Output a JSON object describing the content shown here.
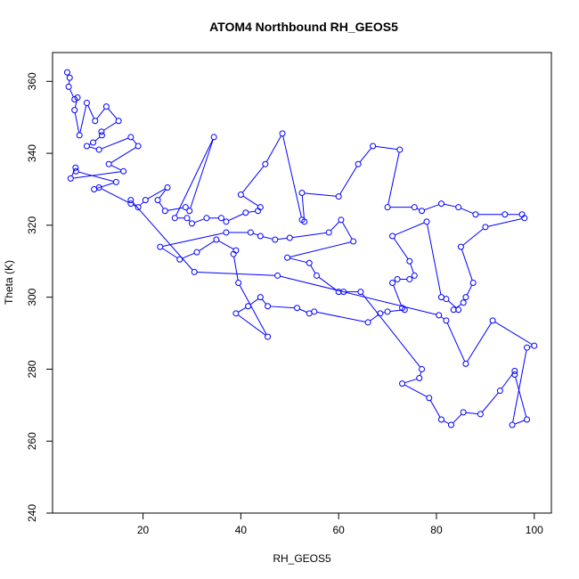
{
  "chart_data": {
    "type": "line",
    "title": "ATOM4 Northbound RH_GEOS5",
    "xlabel": "RH_GEOS5",
    "ylabel": "Theta (K)",
    "xlim": [
      1.5,
      103.5
    ],
    "ylim": [
      240,
      368
    ],
    "x_ticks": [
      20,
      40,
      60,
      80,
      100
    ],
    "y_ticks": [
      240,
      260,
      280,
      300,
      320,
      340,
      360
    ],
    "grid": false,
    "legend": "none",
    "series_color": "#0000ff",
    "marker": "open-circle",
    "points": [
      [
        4.5,
        362.5
      ],
      [
        5,
        361
      ],
      [
        4.8,
        358.5
      ],
      [
        6,
        355
      ],
      [
        6.6,
        355.5
      ],
      [
        6,
        352
      ],
      [
        7,
        345
      ],
      [
        8.5,
        354
      ],
      [
        10.2,
        349
      ],
      [
        12.5,
        353
      ],
      [
        15,
        349
      ],
      [
        11.5,
        346
      ],
      [
        11.6,
        345
      ],
      [
        9.8,
        343
      ],
      [
        8.5,
        342
      ],
      [
        11,
        341
      ],
      [
        17.5,
        344.5
      ],
      [
        19,
        342
      ],
      [
        13,
        337
      ],
      [
        16,
        335
      ],
      [
        5.2,
        333
      ],
      [
        6.2,
        336
      ],
      [
        6.3,
        335
      ],
      [
        14.5,
        332
      ],
      [
        10,
        330
      ],
      [
        11,
        330.5
      ],
      [
        17.5,
        326
      ],
      [
        19,
        325
      ],
      [
        20.5,
        327
      ],
      [
        25,
        330.5
      ],
      [
        23,
        327
      ],
      [
        24.5,
        324
      ],
      [
        28.7,
        325
      ],
      [
        29.5,
        324
      ],
      [
        34.5,
        344.5
      ],
      [
        26.5,
        322
      ],
      [
        29,
        322
      ],
      [
        30,
        320.5
      ],
      [
        33,
        322
      ],
      [
        36,
        322
      ],
      [
        37,
        321
      ],
      [
        41,
        323.5
      ],
      [
        43.5,
        324
      ],
      [
        44,
        325
      ],
      [
        40,
        328.5
      ],
      [
        45,
        337
      ],
      [
        48.5,
        345.5
      ],
      [
        52.5,
        321.5
      ],
      [
        53,
        321
      ],
      [
        52.5,
        329
      ],
      [
        60,
        328
      ],
      [
        64,
        337
      ],
      [
        67,
        342
      ],
      [
        72.5,
        341
      ],
      [
        70,
        325
      ],
      [
        75.5,
        325
      ],
      [
        77,
        324
      ],
      [
        81,
        326
      ],
      [
        84.5,
        325
      ],
      [
        88,
        323
      ],
      [
        94,
        323
      ],
      [
        97.5,
        323
      ],
      [
        98,
        322
      ],
      [
        90,
        319.5
      ],
      [
        85,
        314
      ],
      [
        87.5,
        304
      ],
      [
        86,
        300
      ],
      [
        85.5,
        298.5
      ],
      [
        83.5,
        296.5
      ],
      [
        84.5,
        296.5
      ],
      [
        82,
        299.5
      ],
      [
        81,
        300
      ],
      [
        78,
        321
      ],
      [
        71,
        317
      ],
      [
        74.5,
        310
      ],
      [
        75.5,
        306
      ],
      [
        74.5,
        305
      ],
      [
        72,
        305
      ],
      [
        71,
        304
      ],
      [
        73,
        297
      ],
      [
        73.5,
        296.5
      ],
      [
        70,
        296
      ],
      [
        68.5,
        295.5
      ],
      [
        66,
        293
      ],
      [
        55,
        296
      ],
      [
        54,
        295.5
      ],
      [
        51.5,
        297
      ],
      [
        45.5,
        297.5
      ],
      [
        44,
        300
      ],
      [
        41.5,
        297.5
      ],
      [
        39,
        295.5
      ],
      [
        45.5,
        289
      ],
      [
        39.5,
        304
      ],
      [
        38.5,
        312
      ],
      [
        39,
        313
      ],
      [
        35,
        316
      ],
      [
        31,
        312.5
      ],
      [
        27.5,
        310.5
      ],
      [
        23.5,
        314
      ],
      [
        37,
        318
      ],
      [
        42,
        318
      ],
      [
        44,
        317
      ],
      [
        47,
        316
      ],
      [
        50,
        316.5
      ],
      [
        58,
        318
      ],
      [
        60.5,
        321.5
      ],
      [
        63,
        315.5
      ],
      [
        49.5,
        311
      ],
      [
        54,
        309.5
      ],
      [
        55.5,
        306
      ],
      [
        60,
        301.5
      ],
      [
        61,
        301.5
      ],
      [
        64.5,
        301.5
      ],
      [
        77,
        280
      ],
      [
        76.5,
        277.5
      ],
      [
        73,
        276
      ],
      [
        78.5,
        272
      ],
      [
        81,
        266
      ],
      [
        83,
        264.5
      ],
      [
        85.5,
        268
      ],
      [
        89,
        267.5
      ],
      [
        93,
        274
      ],
      [
        96,
        279.5
      ],
      [
        96,
        278.5
      ],
      [
        98.5,
        266
      ],
      [
        95.5,
        264.5
      ],
      [
        98.5,
        286
      ],
      [
        100,
        286.5
      ],
      [
        91.5,
        293.5
      ],
      [
        86,
        281.5
      ],
      [
        82,
        293.5
      ],
      [
        80.5,
        295
      ],
      [
        47.5,
        306
      ],
      [
        30.5,
        307
      ],
      [
        17.5,
        327
      ]
    ]
  }
}
